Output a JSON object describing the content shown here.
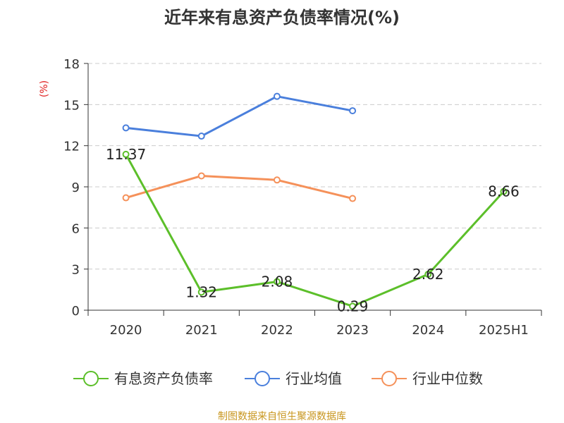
{
  "chart_data": {
    "type": "line",
    "title": "近年来有息资产负债率情况(%)",
    "ylabel": "(%)",
    "xlabel": "",
    "categories": [
      "2020",
      "2021",
      "2022",
      "2023",
      "2024",
      "2025H1"
    ],
    "ylim": [
      0,
      18
    ],
    "yticks": [
      0,
      3,
      6,
      9,
      12,
      15,
      18
    ],
    "grid": true,
    "legend_position": "bottom",
    "series": [
      {
        "name": "有息资产负债率",
        "color": "#5cbf2a",
        "values": [
          11.37,
          1.32,
          2.08,
          0.29,
          2.62,
          8.66
        ],
        "labels": [
          "11.37",
          "1.32",
          "2.08",
          "0.29",
          "2.62",
          "8.66"
        ]
      },
      {
        "name": "行业均值",
        "color": "#4a7fdc",
        "values": [
          13.3,
          12.7,
          15.6,
          14.55,
          null,
          null
        ]
      },
      {
        "name": "行业中位数",
        "color": "#f5915a",
        "values": [
          8.2,
          9.8,
          9.5,
          8.15,
          null,
          null
        ]
      }
    ],
    "source": "制图数据来自恒生聚源数据库"
  }
}
